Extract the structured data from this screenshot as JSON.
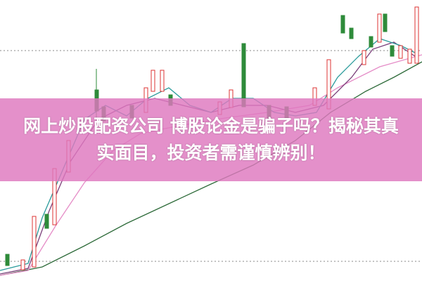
{
  "banner": {
    "title_lines": [
      "网上炒股配资公司 博股论金是骗子吗？揭秘其真",
      "实面目，投资者需谨慎辨别！"
    ]
  }
}
